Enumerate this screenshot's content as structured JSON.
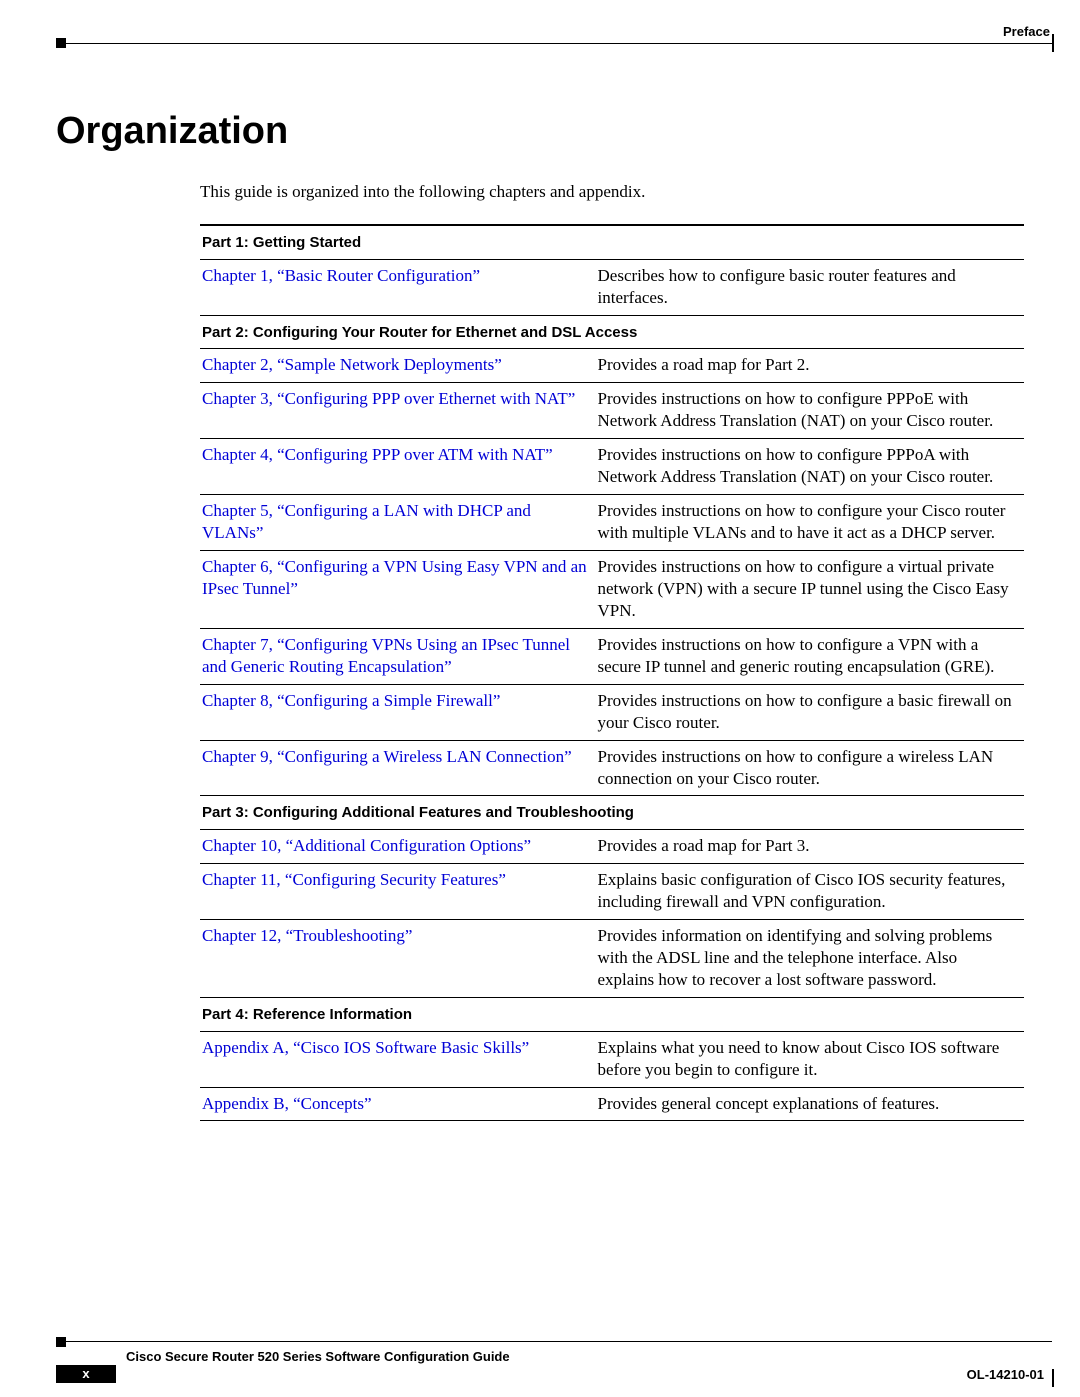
{
  "colors": {
    "link": "#0000d6",
    "text": "#000000",
    "background": "#ffffff"
  },
  "typography": {
    "body_font": "Times New Roman",
    "heading_font": "Arial",
    "title_size_pt": 38,
    "body_size_pt": 17,
    "section_header_size_pt": 15,
    "footer_size_pt": 13
  },
  "header": {
    "label": "Preface"
  },
  "title": "Organization",
  "intro": "This guide is organized into the following chapters and appendix.",
  "table": {
    "column_widths_pct": [
      48,
      52
    ],
    "sections": [
      {
        "header": "Part 1: Getting Started",
        "rows": [
          {
            "chapter": "Chapter 1, “Basic Router Configuration”",
            "desc": "Describes how to configure basic router features and interfaces."
          }
        ]
      },
      {
        "header": "Part 2: Configuring Your Router for Ethernet and DSL Access",
        "rows": [
          {
            "chapter": "Chapter 2, “Sample Network Deployments”",
            "desc": "Provides a road map for Part 2."
          },
          {
            "chapter": "Chapter 3, “Configuring PPP over Ethernet with NAT”",
            "desc": "Provides instructions on how to configure PPPoE with Network Address Translation (NAT) on your Cisco router."
          },
          {
            "chapter": "Chapter 4, “Configuring PPP over ATM with NAT”",
            "desc": "Provides instructions on how to configure PPPoA with Network Address Translation (NAT) on your Cisco router."
          },
          {
            "chapter": "Chapter 5, “Configuring a LAN with DHCP and VLANs”",
            "desc": "Provides instructions on how to configure your Cisco router with multiple VLANs and to have it act as a DHCP server."
          },
          {
            "chapter": "Chapter 6, “Configuring a VPN Using Easy VPN and an IPsec Tunnel”",
            "desc": "Provides instructions on how to configure a virtual private network (VPN) with a secure IP tunnel using the Cisco Easy VPN."
          },
          {
            "chapter": "Chapter 7, “Configuring VPNs Using an IPsec Tunnel and Generic Routing Encapsulation”",
            "desc": "Provides instructions on how to configure a VPN with a secure IP tunnel and generic routing encapsulation (GRE)."
          },
          {
            "chapter": "Chapter 8, “Configuring a Simple Firewall”",
            "desc": "Provides instructions on how to configure a basic firewall on your Cisco router."
          },
          {
            "chapter": "Chapter 9, “Configuring a Wireless LAN Connection”",
            "desc": "Provides instructions on how to configure a wireless LAN connection on your Cisco router."
          }
        ]
      },
      {
        "header": "Part 3: Configuring Additional Features and Troubleshooting",
        "rows": [
          {
            "chapter": "Chapter 10, “Additional Configuration Options”",
            "desc": "Provides a road map for Part 3."
          },
          {
            "chapter": "Chapter 11, “Configuring Security Features”",
            "desc": "Explains basic configuration of Cisco IOS security features, including firewall and VPN configuration."
          },
          {
            "chapter": "Chapter 12, “Troubleshooting”",
            "desc": "Provides information on identifying and solving problems with the ADSL line and the telephone interface. Also explains how to recover a lost software password."
          }
        ]
      },
      {
        "header": "Part 4: Reference Information",
        "rows": [
          {
            "chapter": "Appendix A, “Cisco IOS Software Basic Skills”",
            "desc": "Explains what you need to know about Cisco IOS software before you begin to configure it."
          },
          {
            "chapter": "Appendix B, “Concepts”",
            "desc": "Provides general concept explanations of features."
          }
        ]
      }
    ]
  },
  "footer": {
    "book_title": "Cisco Secure Router 520 Series Software Configuration Guide",
    "page_number": "x",
    "doc_number": "OL-14210-01"
  }
}
